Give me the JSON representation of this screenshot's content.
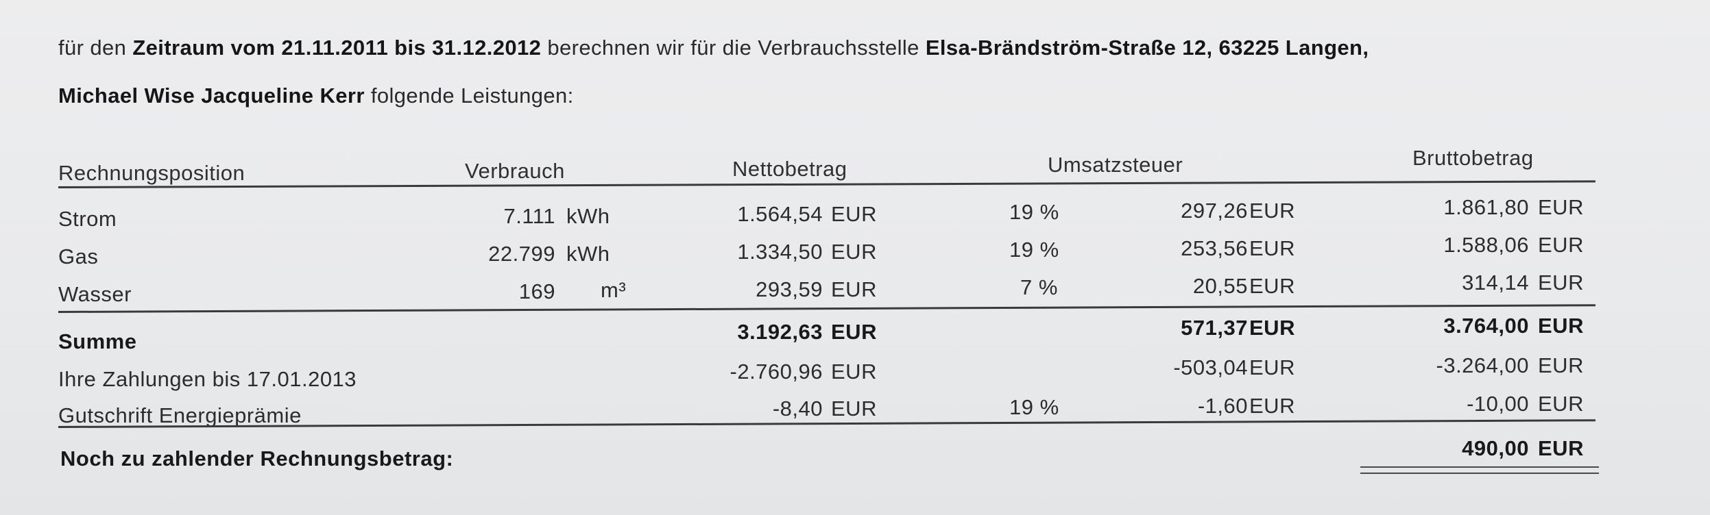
{
  "intro": {
    "line1_prefix": "für den",
    "period_label": "Zeitraum vom 21.11.2011 bis 31.12.2012",
    "line1_middle": "berechnen wir für die Verbrauchsstelle",
    "address": "Elsa-Brändström-Straße 12, 63225 Langen,",
    "customers": "Michael Wise Jacqueline Kerr",
    "line2_suffix": "folgende Leistungen:"
  },
  "table": {
    "headers": {
      "position": "Rechnungsposition",
      "consumption": "Verbrauch",
      "net": "Nettobetrag",
      "vat": "Umsatzsteuer",
      "gross": "Bruttobetrag"
    },
    "rows": [
      {
        "label": "Strom",
        "qty": "7.111",
        "unit": "kWh",
        "net": "1.564,54",
        "net_cur": "EUR",
        "vat_rate": "19 %",
        "vat": "297,26",
        "vat_cur": "EUR",
        "gross": "1.861,80",
        "gross_cur": "EUR"
      },
      {
        "label": "Gas",
        "qty": "22.799",
        "unit": "kWh",
        "net": "1.334,50",
        "net_cur": "EUR",
        "vat_rate": "19 %",
        "vat": "253,56",
        "vat_cur": "EUR",
        "gross": "1.588,06",
        "gross_cur": "EUR"
      },
      {
        "label": "Wasser",
        "qty": "169",
        "unit": "m³",
        "net": "293,59",
        "net_cur": "EUR",
        "vat_rate": "7 %",
        "vat": "20,55",
        "vat_cur": "EUR",
        "gross": "314,14",
        "gross_cur": "EUR"
      }
    ],
    "sum": {
      "label": "Summe",
      "net": "3.192,63",
      "net_cur": "EUR",
      "vat": "571,37",
      "vat_cur": "EUR",
      "gross": "3.764,00",
      "gross_cur": "EUR"
    },
    "payments": {
      "label": "Ihre Zahlungen bis 17.01.2013",
      "net": "-2.760,96",
      "net_cur": "EUR",
      "vat": "-503,04",
      "vat_cur": "EUR",
      "gross": "-3.264,00",
      "gross_cur": "EUR"
    },
    "credit": {
      "label": "Gutschrift Energieprämie",
      "net": "-8,40",
      "net_cur": "EUR",
      "vat_rate": "19 %",
      "vat": "-1,60",
      "vat_cur": "EUR",
      "gross": "-10,00",
      "gross_cur": "EUR"
    },
    "due": {
      "label": "Noch zu zahlender Rechnungsbetrag:",
      "gross": "490,00",
      "gross_cur": "EUR"
    }
  }
}
